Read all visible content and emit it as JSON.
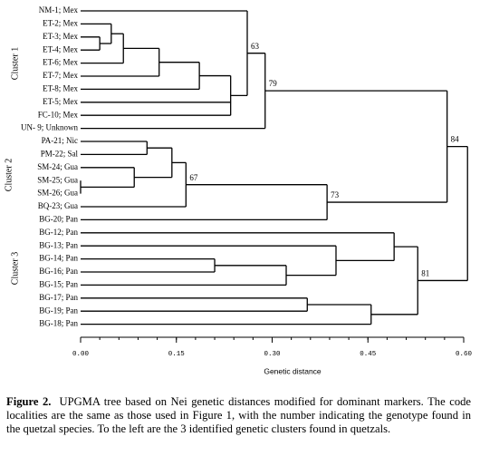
{
  "figure": {
    "clusters": [
      "Cluster 1",
      "Cluster 2",
      "Cluster 3"
    ],
    "axis_label": "Genetic distance",
    "xlim": [
      0,
      0.6
    ],
    "xticks": [
      {
        "value": 0,
        "label": "0.00"
      },
      {
        "value": 0.15,
        "label": "0.15"
      },
      {
        "value": 0.3,
        "label": "0.30"
      },
      {
        "value": 0.45,
        "label": "0.45"
      },
      {
        "value": 0.6,
        "label": "0.60"
      }
    ],
    "tree": {
      "height": 0.606,
      "children": [
        {
          "height": 0.574,
          "support": 84,
          "children": [
            {
              "height": 0.289,
              "support": 79,
              "children": [
                {
                  "height": 0.261,
                  "support": 63,
                  "children": [
                    {
                      "label": "NM-1; Mex"
                    },
                    {
                      "height": 0.235,
                      "children": [
                        {
                          "height": 0.186,
                          "children": [
                            {
                              "height": 0.123,
                              "children": [
                                {
                                  "height": 0.067,
                                  "children": [
                                    {
                                      "height": 0.048,
                                      "children": [
                                        {
                                          "label": "ET-2; Mex"
                                        },
                                        {
                                          "height": 0.03,
                                          "children": [
                                            {
                                              "label": "ET-3; Mex"
                                            },
                                            {
                                              "label": "ET-4; Mex"
                                            }
                                          ]
                                        }
                                      ]
                                    },
                                    {
                                      "label": "ET-6; Mex"
                                    }
                                  ]
                                },
                                {
                                  "label": "ET-7; Mex"
                                }
                              ]
                            },
                            {
                              "label": "ET-8; Mex"
                            }
                          ]
                        },
                        {
                          "label": "ET-5; Mex"
                        },
                        {
                          "label": "FC-10; Mex"
                        }
                      ]
                    }
                  ]
                },
                {
                  "label": "UN- 9; Unknown"
                }
              ]
            },
            {
              "height": 0.386,
              "support": 73,
              "children": [
                {
                  "height": 0.165,
                  "support": 67,
                  "children": [
                    {
                      "height": 0.143,
                      "children": [
                        {
                          "height": 0.104,
                          "children": [
                            {
                              "label": "PA-21; Nic"
                            },
                            {
                              "label": "PM-22; Sal"
                            }
                          ]
                        },
                        {
                          "height": 0.084,
                          "children": [
                            {
                              "label": "SM-24; Gua"
                            },
                            {
                              "height": 0,
                              "children": [
                                {
                                  "label": "SM-25; Gua"
                                },
                                {
                                  "label": "SM-26; Gua"
                                }
                              ]
                            }
                          ]
                        }
                      ]
                    },
                    {
                      "label": "BQ-23; Gua"
                    }
                  ]
                },
                {
                  "label": "BG-20; Pan"
                }
              ]
            }
          ]
        },
        {
          "height": 0.528,
          "support": 81,
          "children": [
            {
              "height": 0.491,
              "children": [
                {
                  "label": "BG-12; Pan"
                },
                {
                  "height": 0.4,
                  "children": [
                    {
                      "label": "BG-13; Pan"
                    },
                    {
                      "height": 0.322,
                      "children": [
                        {
                          "height": 0.21,
                          "children": [
                            {
                              "label": "BG-14; Pan"
                            },
                            {
                              "label": "BG-16; Pan"
                            }
                          ]
                        },
                        {
                          "label": "BG-15; Pan"
                        }
                      ]
                    }
                  ]
                }
              ]
            },
            {
              "height": 0.455,
              "children": [
                {
                  "height": 0.355,
                  "children": [
                    {
                      "label": "BG-17; Pan"
                    },
                    {
                      "label": "BG-19; Pan"
                    }
                  ]
                },
                {
                  "label": "BG-18; Pan"
                }
              ]
            }
          ]
        }
      ]
    }
  },
  "caption": {
    "label": "Figure 2.",
    "text": "UPGMA tree based on Nei genetic distances modified for dominant markers.  The code localities are the same as those used in Figure 1, with the number indicating the genotype found in the quetzal species.  To the left are the 3 identified genetic clusters found in quetzals."
  }
}
